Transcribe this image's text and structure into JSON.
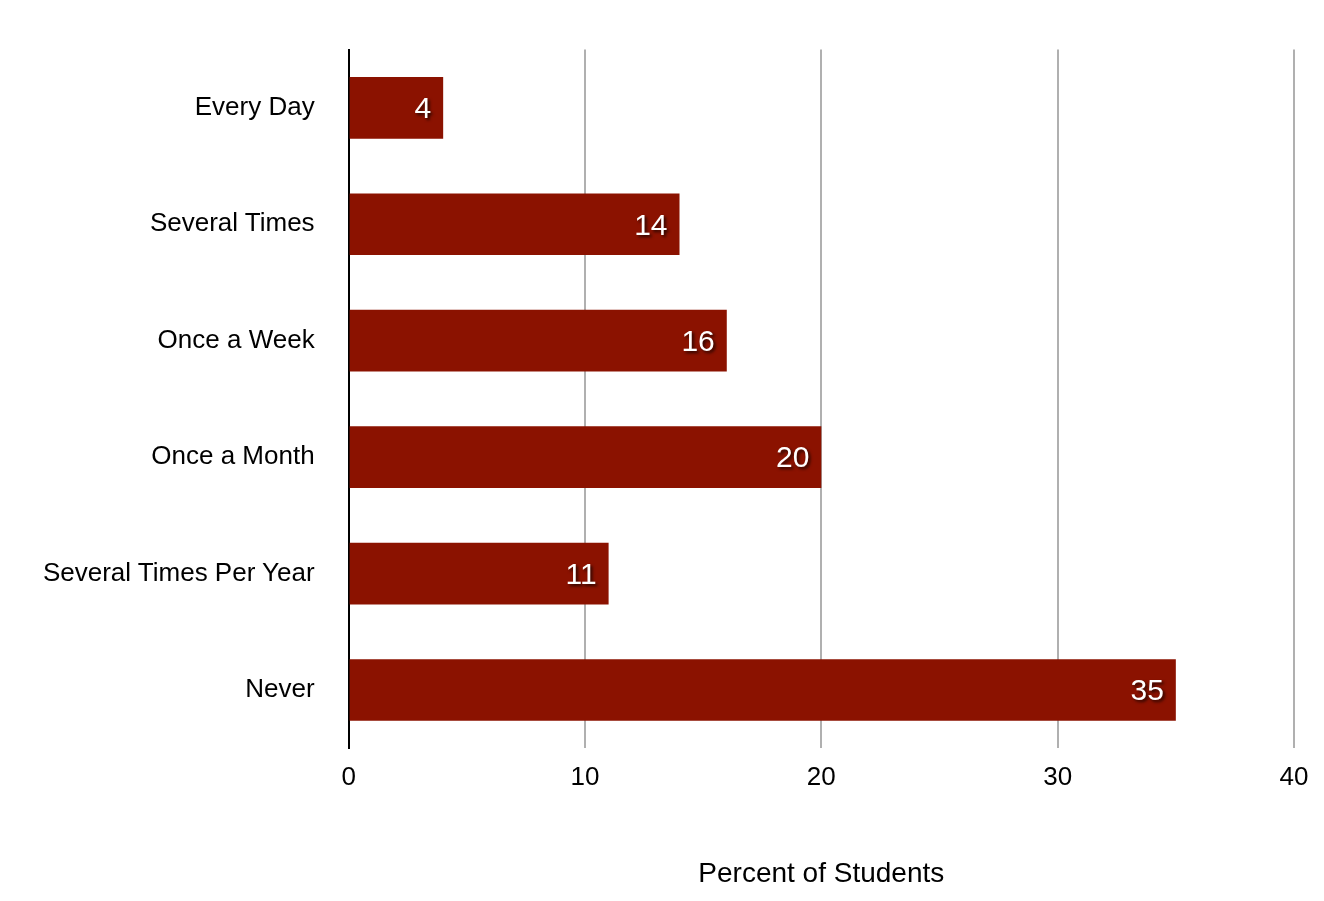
{
  "chart_data": {
    "type": "bar",
    "orientation": "horizontal",
    "categories": [
      "Every Day",
      "Several Times",
      "Once a Week",
      "Once a Month",
      "Several Times Per Year",
      "Never"
    ],
    "values": [
      4,
      14,
      16,
      20,
      11,
      35
    ],
    "color": "#8b1200",
    "xlabel": "Percent of Students",
    "xlim": [
      0,
      40
    ],
    "xticks": [
      0,
      10,
      20,
      30,
      40
    ],
    "grid": "x",
    "data_labels": true
  }
}
